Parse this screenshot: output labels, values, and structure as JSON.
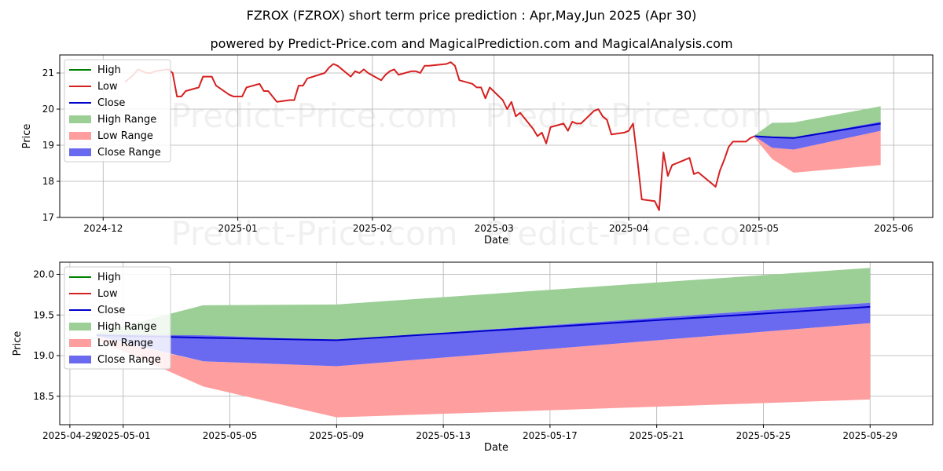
{
  "header": {
    "title": "FZROX (FZROX) short term price prediction : Apr,May,Jun 2025 (Apr 30)",
    "subtitle": "powered by Predict-Price.com and MagicalPrediction.com and MagicalAnalysis.com"
  },
  "watermark": "Predict-Price.com",
  "colors": {
    "high": "#008000",
    "low": "#d62020",
    "close": "#0000cc",
    "high_range": "#9bcf96",
    "low_range": "#ff9e9e",
    "close_range": "#6a6af0"
  },
  "chart_data": [
    {
      "type": "line",
      "xlabel": "Date",
      "ylabel": "Price",
      "xlim": [
        "2024-11-21",
        "2025-06-10"
      ],
      "ylim": [
        17.0,
        21.5
      ],
      "x_ticks": [
        "2024-12-01",
        "2025-01-01",
        "2025-02-01",
        "2025-03-01",
        "2025-04-01",
        "2025-05-01",
        "2025-06-01"
      ],
      "x_tick_labels": [
        "2024-12",
        "2025-01",
        "2025-02",
        "2025-03",
        "2025-04",
        "2025-05",
        "2025-06"
      ],
      "y_ticks": [
        17,
        18,
        19,
        20,
        21
      ],
      "grid": true,
      "legend": {
        "position": "top-left",
        "entries": [
          "High",
          "Low",
          "Close",
          "High Range",
          "Low Range",
          "Close Range"
        ]
      },
      "series": [
        {
          "name": "Low",
          "points": [
            [
              "2024-12-06",
              20.75
            ],
            [
              "2024-12-07",
              20.85
            ],
            [
              "2024-12-08",
              20.95
            ],
            [
              "2024-12-09",
              21.1
            ],
            [
              "2024-12-10",
              21.05
            ],
            [
              "2024-12-11",
              21.0
            ],
            [
              "2024-12-12",
              21.0
            ],
            [
              "2024-12-13",
              21.05
            ],
            [
              "2024-12-16",
              21.1
            ],
            [
              "2024-12-17",
              21.0
            ],
            [
              "2024-12-18",
              20.35
            ],
            [
              "2024-12-19",
              20.35
            ],
            [
              "2024-12-20",
              20.5
            ],
            [
              "2024-12-23",
              20.6
            ],
            [
              "2024-12-24",
              20.9
            ],
            [
              "2024-12-26",
              20.9
            ],
            [
              "2024-12-27",
              20.65
            ],
            [
              "2024-12-30",
              20.4
            ],
            [
              "2024-12-31",
              20.35
            ],
            [
              "2025-01-02",
              20.35
            ],
            [
              "2025-01-03",
              20.6
            ],
            [
              "2025-01-06",
              20.7
            ],
            [
              "2025-01-07",
              20.5
            ],
            [
              "2025-01-08",
              20.5
            ],
            [
              "2025-01-10",
              20.2
            ],
            [
              "2025-01-13",
              20.25
            ],
            [
              "2025-01-14",
              20.25
            ],
            [
              "2025-01-15",
              20.65
            ],
            [
              "2025-01-16",
              20.65
            ],
            [
              "2025-01-17",
              20.85
            ],
            [
              "2025-01-21",
              21.0
            ],
            [
              "2025-01-22",
              21.15
            ],
            [
              "2025-01-23",
              21.25
            ],
            [
              "2025-01-24",
              21.2
            ],
            [
              "2025-01-27",
              20.9
            ],
            [
              "2025-01-28",
              21.05
            ],
            [
              "2025-01-29",
              21.0
            ],
            [
              "2025-01-30",
              21.1
            ],
            [
              "2025-01-31",
              21.0
            ],
            [
              "2025-02-03",
              20.8
            ],
            [
              "2025-02-04",
              20.95
            ],
            [
              "2025-02-05",
              21.05
            ],
            [
              "2025-02-06",
              21.1
            ],
            [
              "2025-02-07",
              20.95
            ],
            [
              "2025-02-10",
              21.05
            ],
            [
              "2025-02-11",
              21.05
            ],
            [
              "2025-02-12",
              21.0
            ],
            [
              "2025-02-13",
              21.2
            ],
            [
              "2025-02-14",
              21.2
            ],
            [
              "2025-02-18",
              21.25
            ],
            [
              "2025-02-19",
              21.3
            ],
            [
              "2025-02-20",
              21.2
            ],
            [
              "2025-02-21",
              20.8
            ],
            [
              "2025-02-24",
              20.7
            ],
            [
              "2025-02-25",
              20.6
            ],
            [
              "2025-02-26",
              20.6
            ],
            [
              "2025-02-27",
              20.3
            ],
            [
              "2025-02-28",
              20.6
            ],
            [
              "2025-03-03",
              20.25
            ],
            [
              "2025-03-04",
              20.0
            ],
            [
              "2025-03-05",
              20.2
            ],
            [
              "2025-03-06",
              19.8
            ],
            [
              "2025-03-07",
              19.9
            ],
            [
              "2025-03-10",
              19.45
            ],
            [
              "2025-03-11",
              19.25
            ],
            [
              "2025-03-12",
              19.35
            ],
            [
              "2025-03-13",
              19.05
            ],
            [
              "2025-03-14",
              19.5
            ],
            [
              "2025-03-17",
              19.6
            ],
            [
              "2025-03-18",
              19.4
            ],
            [
              "2025-03-19",
              19.65
            ],
            [
              "2025-03-20",
              19.6
            ],
            [
              "2025-03-21",
              19.6
            ],
            [
              "2025-03-24",
              19.95
            ],
            [
              "2025-03-25",
              20.0
            ],
            [
              "2025-03-26",
              19.8
            ],
            [
              "2025-03-27",
              19.7
            ],
            [
              "2025-03-28",
              19.3
            ],
            [
              "2025-03-31",
              19.35
            ],
            [
              "2025-04-01",
              19.4
            ],
            [
              "2025-04-02",
              19.6
            ],
            [
              "2025-04-03",
              18.6
            ],
            [
              "2025-04-04",
              17.5
            ],
            [
              "2025-04-07",
              17.45
            ],
            [
              "2025-04-08",
              17.2
            ],
            [
              "2025-04-09",
              18.8
            ],
            [
              "2025-04-10",
              18.15
            ],
            [
              "2025-04-11",
              18.45
            ],
            [
              "2025-04-14",
              18.6
            ],
            [
              "2025-04-15",
              18.65
            ],
            [
              "2025-04-16",
              18.2
            ],
            [
              "2025-04-17",
              18.25
            ],
            [
              "2025-04-21",
              17.85
            ],
            [
              "2025-04-22",
              18.3
            ],
            [
              "2025-04-23",
              18.6
            ],
            [
              "2025-04-24",
              18.95
            ],
            [
              "2025-04-25",
              19.1
            ],
            [
              "2025-04-28",
              19.1
            ],
            [
              "2025-04-29",
              19.2
            ],
            [
              "2025-04-30",
              19.25
            ]
          ]
        },
        {
          "name": "Close",
          "points": [
            [
              "2025-04-30",
              19.25
            ],
            [
              "2025-05-04",
              19.22
            ],
            [
              "2025-05-09",
              19.2
            ],
            [
              "2025-05-29",
              19.6
            ]
          ]
        },
        {
          "name": "High Range",
          "upper": [
            [
              "2025-04-30",
              19.28
            ],
            [
              "2025-05-04",
              19.62
            ],
            [
              "2025-05-09",
              19.63
            ],
            [
              "2025-05-29",
              20.08
            ]
          ],
          "lower": [
            [
              "2025-04-30",
              19.23
            ],
            [
              "2025-05-04",
              19.24
            ],
            [
              "2025-05-09",
              19.21
            ],
            [
              "2025-05-29",
              19.62
            ]
          ]
        },
        {
          "name": "Low Range",
          "upper": [
            [
              "2025-04-30",
              19.23
            ],
            [
              "2025-05-04",
              18.93
            ],
            [
              "2025-05-09",
              18.88
            ],
            [
              "2025-05-29",
              19.4
            ]
          ],
          "lower": [
            [
              "2025-04-30",
              19.2
            ],
            [
              "2025-05-04",
              18.62
            ],
            [
              "2025-05-09",
              18.24
            ],
            [
              "2025-05-29",
              18.45
            ]
          ]
        },
        {
          "name": "Close Range",
          "upper": [
            [
              "2025-04-30",
              19.26
            ],
            [
              "2025-05-04",
              19.24
            ],
            [
              "2025-05-09",
              19.21
            ],
            [
              "2025-05-29",
              19.65
            ]
          ],
          "lower": [
            [
              "2025-04-30",
              19.24
            ],
            [
              "2025-05-04",
              18.93
            ],
            [
              "2025-05-09",
              18.88
            ],
            [
              "2025-05-29",
              19.4
            ]
          ]
        }
      ]
    },
    {
      "type": "line",
      "xlabel": "Date",
      "ylabel": "Price",
      "xlim": [
        "2025-04-28.62",
        "2025-05-31.35"
      ],
      "ylim": [
        18.15,
        20.15
      ],
      "x_ticks": [
        "2025-04-29",
        "2025-05-01",
        "2025-05-05",
        "2025-05-09",
        "2025-05-13",
        "2025-05-17",
        "2025-05-21",
        "2025-05-25",
        "2025-05-29"
      ],
      "x_tick_labels": [
        "2025-04-29",
        "2025-05-01",
        "2025-05-05",
        "2025-05-09",
        "2025-05-13",
        "2025-05-17",
        "2025-05-21",
        "2025-05-25",
        "2025-05-29"
      ],
      "y_ticks": [
        18.5,
        19.0,
        19.5,
        20.0
      ],
      "y_tick_labels": [
        "18.5",
        "19.0",
        "19.5",
        "20.0"
      ],
      "grid": true,
      "legend": {
        "position": "top-left",
        "entries": [
          "High",
          "Low",
          "Close",
          "High Range",
          "Low Range",
          "Close Range"
        ]
      },
      "series": [
        {
          "name": "Close",
          "points": [
            [
              "2025-04-30",
              19.25
            ],
            [
              "2025-05-04",
              19.22
            ],
            [
              "2025-05-09",
              19.19
            ],
            [
              "2025-05-29",
              19.6
            ]
          ]
        },
        {
          "name": "High Range",
          "upper": [
            [
              "2025-04-30",
              19.28
            ],
            [
              "2025-05-04",
              19.62
            ],
            [
              "2025-05-09",
              19.63
            ],
            [
              "2025-05-29",
              20.08
            ]
          ],
          "lower": [
            [
              "2025-04-30",
              19.23
            ],
            [
              "2025-05-04",
              19.25
            ],
            [
              "2025-05-09",
              19.19
            ],
            [
              "2025-05-29",
              19.65
            ]
          ]
        },
        {
          "name": "Low Range",
          "upper": [
            [
              "2025-04-30",
              19.23
            ],
            [
              "2025-05-04",
              18.93
            ],
            [
              "2025-05-09",
              18.87
            ],
            [
              "2025-05-29",
              19.4
            ]
          ],
          "lower": [
            [
              "2025-04-30",
              19.2
            ],
            [
              "2025-05-04",
              18.62
            ],
            [
              "2025-05-09",
              18.24
            ],
            [
              "2025-05-29",
              18.46
            ]
          ]
        },
        {
          "name": "Close Range",
          "upper": [
            [
              "2025-04-30",
              19.26
            ],
            [
              "2025-05-04",
              19.25
            ],
            [
              "2025-05-09",
              19.19
            ],
            [
              "2025-05-29",
              19.65
            ]
          ],
          "lower": [
            [
              "2025-04-30",
              19.24
            ],
            [
              "2025-05-04",
              18.93
            ],
            [
              "2025-05-09",
              18.87
            ],
            [
              "2025-05-29",
              19.4
            ]
          ]
        }
      ]
    }
  ]
}
